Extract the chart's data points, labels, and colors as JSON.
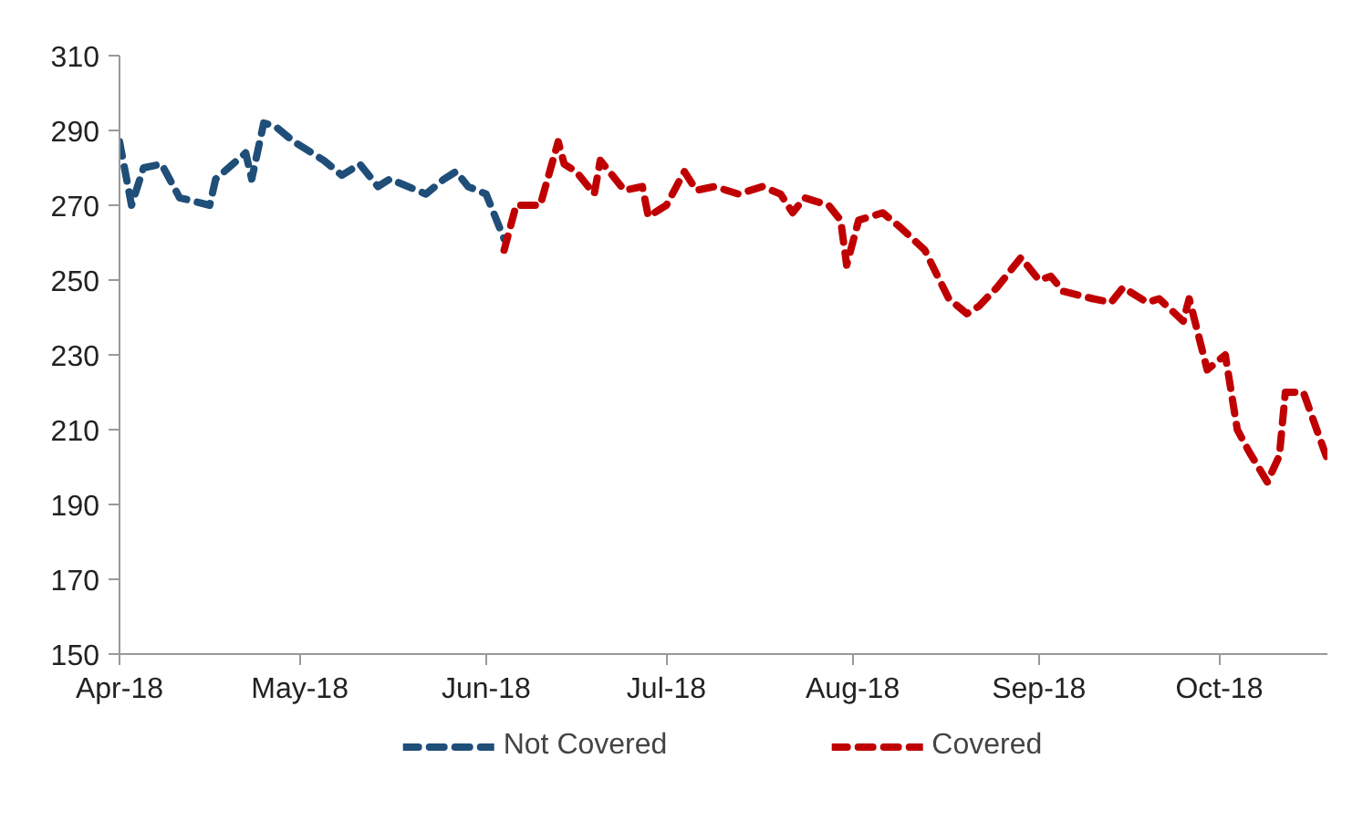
{
  "chart_data": {
    "type": "line",
    "line_style": "dashed",
    "marker": "none",
    "grid": false,
    "legend": "bottom",
    "xlim": [
      "2018-04-01",
      "2018-10-19"
    ],
    "xticks": [
      {
        "value": "2018-04-01",
        "label": "Apr-18"
      },
      {
        "value": "2018-05-01",
        "label": "May-18"
      },
      {
        "value": "2018-06-01",
        "label": "Jun-18"
      },
      {
        "value": "2018-07-01",
        "label": "Jul-18"
      },
      {
        "value": "2018-08-01",
        "label": "Aug-18"
      },
      {
        "value": "2018-09-01",
        "label": "Sep-18"
      },
      {
        "value": "2018-10-01",
        "label": "Oct-18"
      }
    ],
    "ylim": [
      150,
      310
    ],
    "yticks": [
      150,
      170,
      190,
      210,
      230,
      250,
      270,
      290,
      310
    ],
    "series": [
      {
        "name": "Not Covered",
        "color": "#1f4e79",
        "x": [
          "2018-04-01",
          "2018-04-03",
          "2018-04-05",
          "2018-04-08",
          "2018-04-11",
          "2018-04-16",
          "2018-04-17",
          "2018-04-22",
          "2018-04-23",
          "2018-04-25",
          "2018-04-27",
          "2018-04-30",
          "2018-05-05",
          "2018-05-08",
          "2018-05-11",
          "2018-05-14",
          "2018-05-16",
          "2018-05-19",
          "2018-05-22",
          "2018-05-25",
          "2018-05-27",
          "2018-05-29",
          "2018-06-01",
          "2018-06-04"
        ],
        "values": [
          287,
          270,
          280,
          281,
          272,
          270,
          277,
          284,
          277,
          292,
          291,
          287,
          282,
          278,
          281,
          275,
          277,
          275,
          273,
          277,
          279,
          275,
          273,
          261
        ]
      },
      {
        "name": "Covered",
        "color": "#c00000",
        "x": [
          "2018-06-04",
          "2018-06-06",
          "2018-06-10",
          "2018-06-13",
          "2018-06-14",
          "2018-06-16",
          "2018-06-19",
          "2018-06-20",
          "2018-06-24",
          "2018-06-27",
          "2018-06-28",
          "2018-07-01",
          "2018-07-04",
          "2018-07-06",
          "2018-07-09",
          "2018-07-13",
          "2018-07-17",
          "2018-07-20",
          "2018-07-22",
          "2018-07-24",
          "2018-07-28",
          "2018-07-30",
          "2018-07-31",
          "2018-08-02",
          "2018-08-06",
          "2018-08-09",
          "2018-08-13",
          "2018-08-17",
          "2018-08-20",
          "2018-08-22",
          "2018-08-25",
          "2018-08-29",
          "2018-09-01",
          "2018-09-03",
          "2018-09-05",
          "2018-09-10",
          "2018-09-13",
          "2018-09-15",
          "2018-09-19",
          "2018-09-21",
          "2018-09-25",
          "2018-09-26",
          "2018-09-29",
          "2018-10-02",
          "2018-10-04",
          "2018-10-06",
          "2018-10-09",
          "2018-10-11",
          "2018-10-12",
          "2018-10-15",
          "2018-10-19"
        ],
        "values": [
          258,
          270,
          270,
          287,
          281,
          279,
          273,
          282,
          274,
          275,
          267,
          270,
          279,
          274,
          275,
          273,
          275,
          273,
          268,
          272,
          270,
          266,
          254,
          266,
          268,
          264,
          258,
          245,
          241,
          243,
          248,
          256,
          250,
          251,
          247,
          245,
          244,
          248,
          244,
          245,
          239,
          245,
          226,
          230,
          210,
          204,
          196,
          203,
          220,
          220,
          202
        ]
      }
    ]
  }
}
